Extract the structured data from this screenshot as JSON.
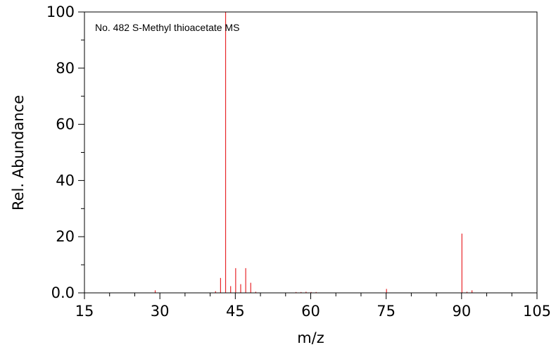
{
  "chart_data": {
    "type": "bar",
    "annotation": "No. 482 S-Methyl thioacetate MS",
    "xlabel": "m/z",
    "ylabel": "Rel. Abundance",
    "xlim": [
      15,
      105
    ],
    "ylim": [
      0,
      100
    ],
    "xticks": [
      15,
      30,
      45,
      60,
      75,
      90,
      105
    ],
    "yticks": [
      0,
      20,
      40,
      60,
      80,
      100
    ],
    "ytick_labels": [
      "0.0",
      "20",
      "40",
      "60",
      "80",
      "100"
    ],
    "grid": false,
    "bar_color": "#e8262a",
    "peaks": [
      {
        "mz": 29,
        "value": 0.9
      },
      {
        "mz": 41,
        "value": 0.6
      },
      {
        "mz": 42,
        "value": 5.3
      },
      {
        "mz": 43,
        "value": 100
      },
      {
        "mz": 44,
        "value": 2.4
      },
      {
        "mz": 45,
        "value": 8.8
      },
      {
        "mz": 46,
        "value": 3.1
      },
      {
        "mz": 47,
        "value": 8.8
      },
      {
        "mz": 48,
        "value": 3.6
      },
      {
        "mz": 49,
        "value": 0.4
      },
      {
        "mz": 57,
        "value": 0.3
      },
      {
        "mz": 58,
        "value": 0.3
      },
      {
        "mz": 59,
        "value": 0.4
      },
      {
        "mz": 60,
        "value": 0.3
      },
      {
        "mz": 61,
        "value": 0.3
      },
      {
        "mz": 75,
        "value": 1.4
      },
      {
        "mz": 90,
        "value": 21.1
      },
      {
        "mz": 91,
        "value": 0.4
      },
      {
        "mz": 92,
        "value": 0.9
      }
    ]
  }
}
